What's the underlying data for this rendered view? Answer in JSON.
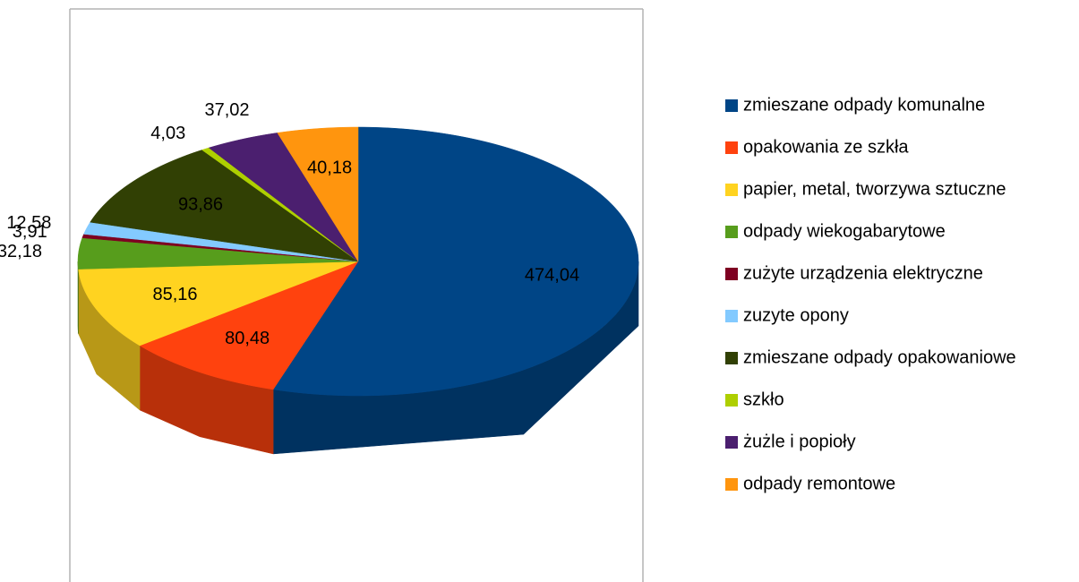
{
  "chart_data": {
    "type": "pie",
    "categories": [
      "zmieszane odpady komunalne",
      "opakowania ze szkła",
      "papier, metal, tworzywa sztuczne",
      "odpady wiekogabarytowe",
      "zużyte urządzenia elektryczne",
      "zuzyte opony",
      "zmieszane odpady opakowaniowe",
      "szkło",
      "żużle i popioły",
      "odpady remontowe"
    ],
    "values": [
      474.04,
      80.48,
      85.16,
      32.18,
      3.91,
      12.58,
      93.86,
      4.03,
      37.02,
      40.18
    ],
    "value_labels": [
      "474,04",
      "80,48",
      "85,16",
      "32,18",
      "3,91",
      "12,58",
      "93,86",
      "4,03",
      "37,02",
      "40,18"
    ],
    "colors": [
      "#004586",
      "#ff420e",
      "#ffd320",
      "#579d1c",
      "#7e0021",
      "#83caff",
      "#314004",
      "#aecf00",
      "#4b1f6f",
      "#ff950e"
    ],
    "legend": "right"
  }
}
